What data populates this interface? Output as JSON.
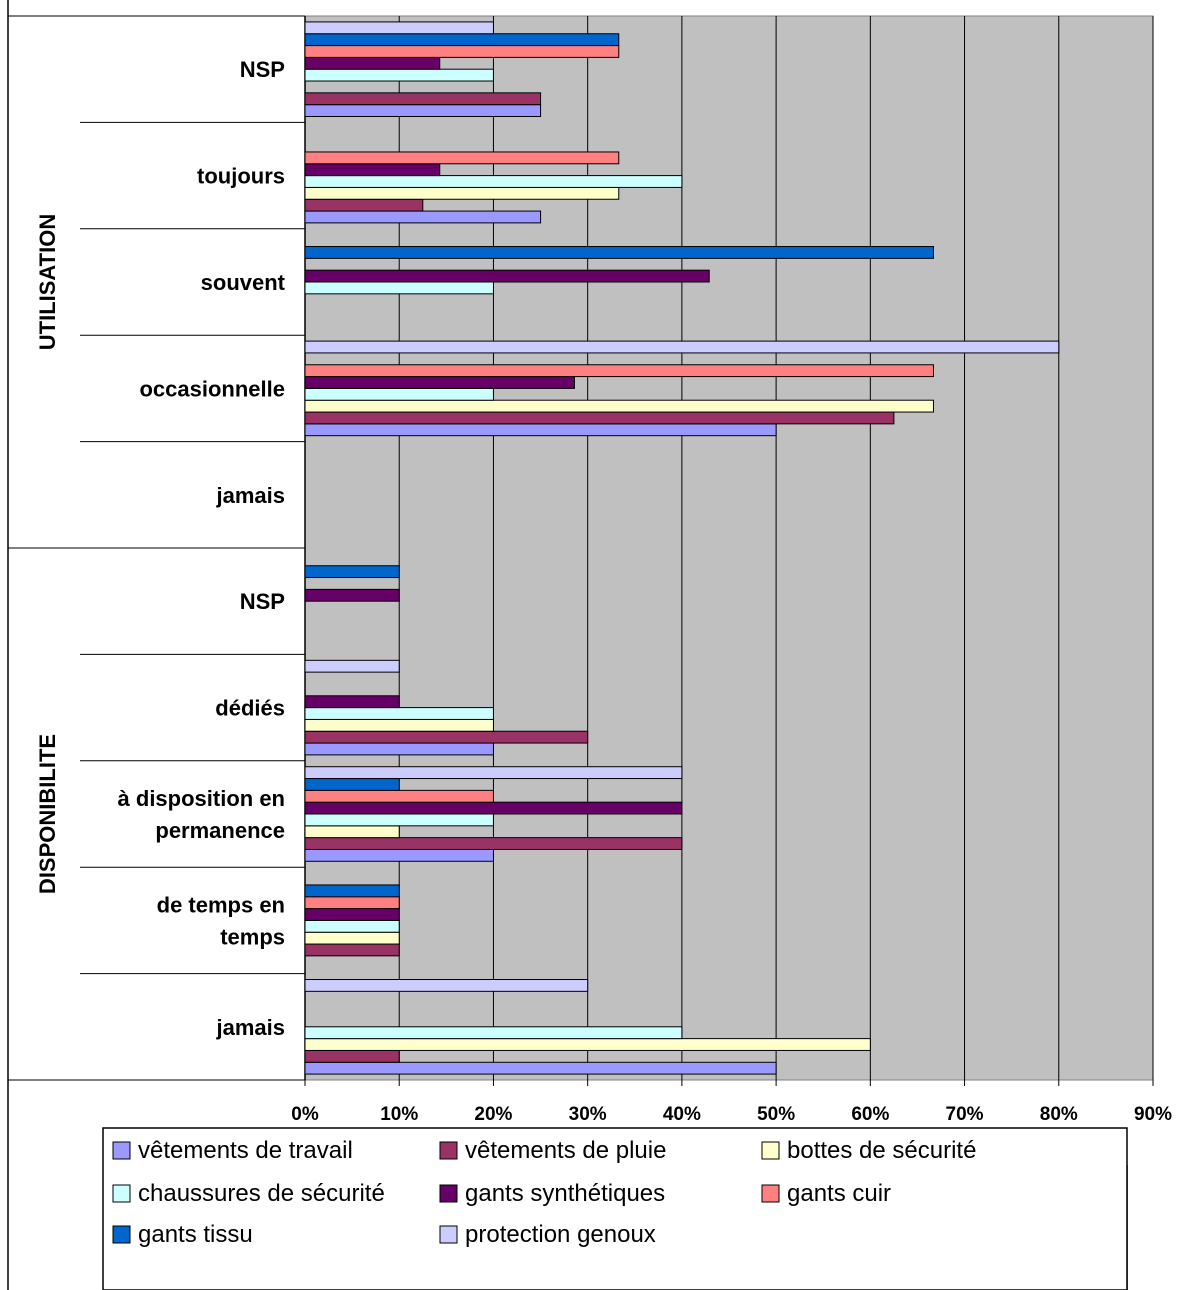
{
  "chart_data": {
    "type": "bar",
    "orientation": "horizontal",
    "title": "",
    "xlabel": "",
    "ylabel": "",
    "xlim": [
      0,
      90
    ],
    "x_ticks": [
      "0%",
      "10%",
      "20%",
      "30%",
      "40%",
      "50%",
      "60%",
      "70%",
      "80%",
      "90%"
    ],
    "grid": true,
    "legend_position": "bottom",
    "groups": [
      {
        "label": "UTILISATION",
        "categories": [
          "NSP",
          "toujours",
          "souvent",
          "occasionnelle",
          "jamais"
        ]
      },
      {
        "label": "DISPONIBILITE",
        "categories": [
          "NSP",
          "dédiés",
          "à disposition en permanence",
          "de temps en temps",
          "jamais"
        ]
      }
    ],
    "categories": [
      {
        "group": "UTILISATION",
        "lines": [
          "NSP"
        ]
      },
      {
        "group": "UTILISATION",
        "lines": [
          "toujours"
        ]
      },
      {
        "group": "UTILISATION",
        "lines": [
          "souvent"
        ]
      },
      {
        "group": "UTILISATION",
        "lines": [
          "occasionnelle"
        ]
      },
      {
        "group": "UTILISATION",
        "lines": [
          "jamais"
        ]
      },
      {
        "group": "DISPONIBILITE",
        "lines": [
          "NSP"
        ]
      },
      {
        "group": "DISPONIBILITE",
        "lines": [
          "dédiés"
        ]
      },
      {
        "group": "DISPONIBILITE",
        "lines": [
          "à disposition en",
          "permanence"
        ]
      },
      {
        "group": "DISPONIBILITE",
        "lines": [
          "de temps en",
          "temps"
        ]
      },
      {
        "group": "DISPONIBILITE",
        "lines": [
          "jamais"
        ]
      }
    ],
    "series": [
      {
        "name": "vêtements de travail",
        "color": "#9999ff",
        "values": [
          25,
          25,
          0,
          50,
          0,
          0,
          20,
          20,
          0,
          50
        ]
      },
      {
        "name": "vêtements de pluie",
        "color": "#993366",
        "values": [
          25,
          12.5,
          0,
          62.5,
          0,
          0,
          30,
          40,
          10,
          10
        ]
      },
      {
        "name": "bottes de sécurité",
        "color": "#ffffcc",
        "values": [
          0,
          33.3,
          0,
          66.7,
          0,
          0,
          20,
          10,
          10,
          60
        ]
      },
      {
        "name": "chaussures de sécurité",
        "color": "#ccffff",
        "values": [
          20,
          40,
          20,
          20,
          0,
          0,
          20,
          20,
          10,
          40
        ]
      },
      {
        "name": "gants synthétiques",
        "color": "#660066",
        "values": [
          14.3,
          14.3,
          42.9,
          28.6,
          0,
          10,
          10,
          40,
          10,
          0
        ]
      },
      {
        "name": "gants cuir",
        "color": "#ff8080",
        "values": [
          33.3,
          33.3,
          0,
          66.7,
          0,
          0,
          0,
          20,
          10,
          0
        ]
      },
      {
        "name": "gants tissu",
        "color": "#0066cc",
        "values": [
          33.3,
          0,
          66.7,
          0,
          0,
          10,
          0,
          10,
          10,
          0
        ]
      },
      {
        "name": "protection genoux",
        "color": "#ccccff",
        "values": [
          20,
          0,
          0,
          80,
          0,
          0,
          10,
          40,
          0,
          30
        ]
      }
    ]
  }
}
